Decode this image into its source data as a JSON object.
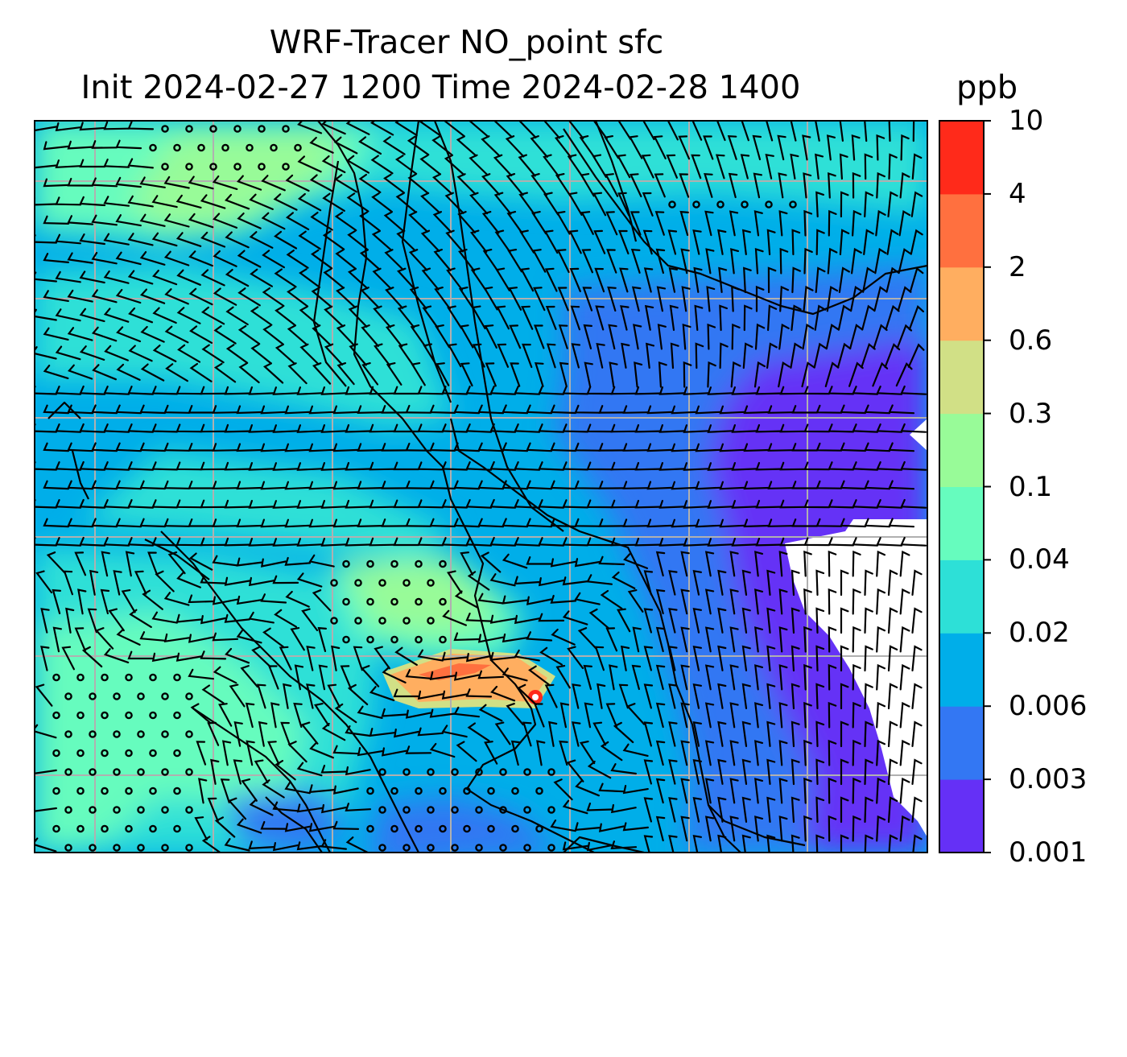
{
  "title_line1": "WRF-Tracer NO_point sfc",
  "title_line2": "Init 2024-02-27 1200 Time 2024-02-28 1400",
  "units": "ppb",
  "colorbar": {
    "ticks": [
      "0.001",
      "0.003",
      "0.006",
      "0.02",
      "0.04",
      "0.1",
      "0.3",
      "0.6",
      "2",
      "4",
      "10"
    ],
    "colors": [
      "#6530f6",
      "#3377f3",
      "#00aee9",
      "#2de0d7",
      "#66fcbe",
      "#98fb98",
      "#d1e086",
      "#ffae60",
      "#ff703f",
      "#ff2a1a"
    ]
  },
  "background_color": "#00aee9",
  "map_features": [
    "coastlines",
    "state-borders",
    "lat-lon-gridlines",
    "wind-barbs",
    "calm-circles"
  ]
}
